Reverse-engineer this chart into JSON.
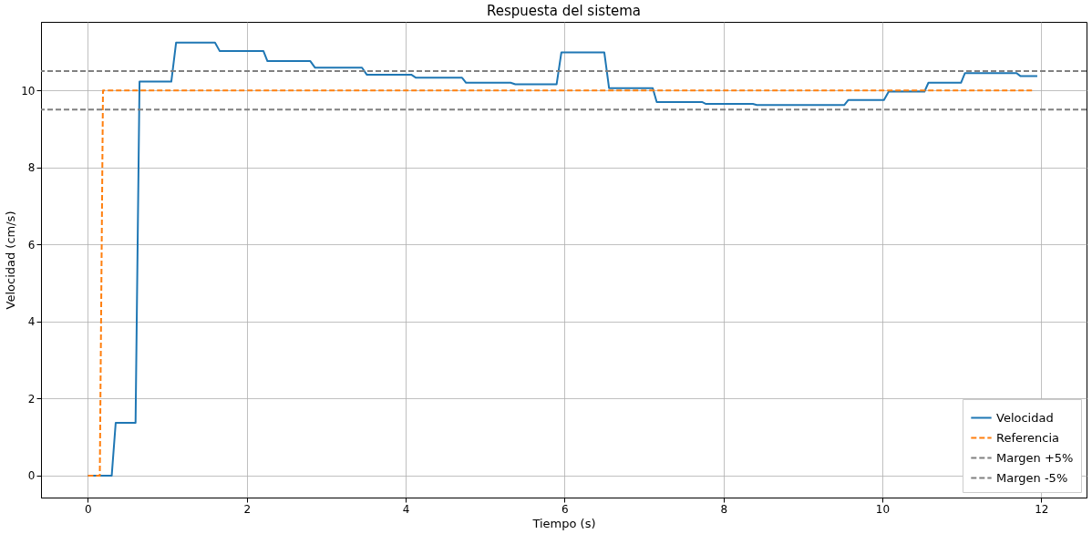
{
  "chart_data": {
    "type": "line",
    "title": "Respuesta del sistema",
    "xlabel": "Tiempo (s)",
    "ylabel": "Velocidad (cm/s)",
    "xlim": [
      -0.59,
      12.57
    ],
    "ylim": [
      -0.57,
      11.78
    ],
    "xticks": [
      0,
      2,
      4,
      6,
      8,
      10,
      12
    ],
    "yticks": [
      0,
      2,
      4,
      6,
      8,
      10
    ],
    "grid": true,
    "legend": "bottom right",
    "marker": "none",
    "series": [
      {
        "name": "Velocidad",
        "color": "#1f77b4",
        "line_style": "solid",
        "x": [
          0,
          0.3,
          0.35,
          0.6,
          0.65,
          1.05,
          1.11,
          1.6,
          1.66,
          2.21,
          2.26,
          2.8,
          2.86,
          3.45,
          3.51,
          4.07,
          4.13,
          4.71,
          4.76,
          5.32,
          5.38,
          5.9,
          5.96,
          6.5,
          6.56,
          7.11,
          7.16,
          7.73,
          7.78,
          8.37,
          8.42,
          9.52,
          9.57,
          10.02,
          10.08,
          10.53,
          10.58,
          10.99,
          11.04,
          11.69,
          11.74,
          11.95
        ],
        "values": [
          0,
          0,
          1.37,
          1.37,
          10.23,
          10.23,
          11.24,
          11.24,
          11.02,
          11.02,
          10.76,
          10.76,
          10.59,
          10.59,
          10.41,
          10.41,
          10.33,
          10.33,
          10.2,
          10.2,
          10.16,
          10.16,
          10.99,
          10.99,
          10.06,
          10.06,
          9.7,
          9.7,
          9.65,
          9.65,
          9.62,
          9.62,
          9.75,
          9.75,
          9.97,
          9.97,
          10.2,
          10.2,
          10.45,
          10.45,
          10.37,
          10.37
        ]
      },
      {
        "name": "Referencia",
        "color": "#ff7f0e",
        "line_style": "dashed",
        "x": [
          0,
          0.15,
          0.19,
          11.9
        ],
        "values": [
          0,
          0,
          10,
          10
        ]
      }
    ],
    "ref_lines": [
      {
        "axis": "y",
        "value": 10.5,
        "label": "Margen +5%",
        "color": "#808080",
        "line_style": "dashed"
      },
      {
        "axis": "y",
        "value": 9.5,
        "label": "Margen -5%",
        "color": "#808080",
        "line_style": "dashed"
      }
    ]
  }
}
